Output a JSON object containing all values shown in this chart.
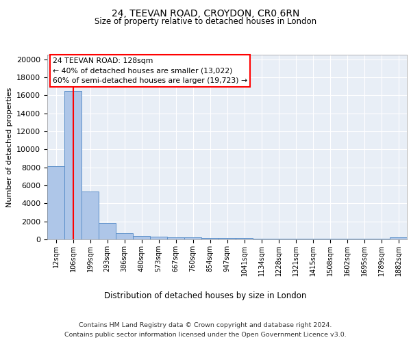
{
  "title1": "24, TEEVAN ROAD, CROYDON, CR0 6RN",
  "title2": "Size of property relative to detached houses in London",
  "xlabel": "Distribution of detached houses by size in London",
  "ylabel": "Number of detached properties",
  "categories": [
    "12sqm",
    "106sqm",
    "199sqm",
    "293sqm",
    "386sqm",
    "480sqm",
    "573sqm",
    "667sqm",
    "760sqm",
    "854sqm",
    "947sqm",
    "1041sqm",
    "1134sqm",
    "1228sqm",
    "1321sqm",
    "1415sqm",
    "1508sqm",
    "1602sqm",
    "1695sqm",
    "1789sqm",
    "1882sqm"
  ],
  "values": [
    8100,
    16500,
    5300,
    1800,
    700,
    350,
    300,
    250,
    200,
    150,
    130,
    120,
    110,
    100,
    90,
    80,
    70,
    60,
    50,
    40,
    200
  ],
  "bar_color": "#aec6e8",
  "bar_edge_color": "#5b8fc9",
  "bg_color": "#e8eef6",
  "red_line_x": 1,
  "annotation_title": "24 TEEVAN ROAD: 128sqm",
  "annotation_line1": "← 40% of detached houses are smaller (13,022)",
  "annotation_line2": "60% of semi-detached houses are larger (19,723) →",
  "footer1": "Contains HM Land Registry data © Crown copyright and database right 2024.",
  "footer2": "Contains public sector information licensed under the Open Government Licence v3.0.",
  "ylim": [
    0,
    20500
  ],
  "yticks": [
    0,
    2000,
    4000,
    6000,
    8000,
    10000,
    12000,
    14000,
    16000,
    18000,
    20000
  ]
}
